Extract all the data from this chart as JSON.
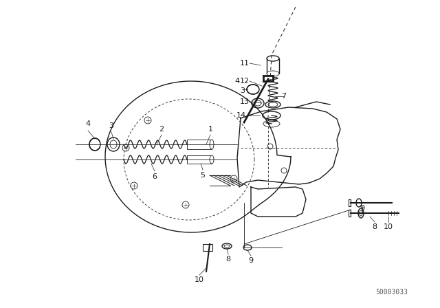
{
  "bg_color": "#ffffff",
  "line_color": "#1a1a1a",
  "fig_width": 6.4,
  "fig_height": 4.48,
  "dpi": 100,
  "watermark": "50003033",
  "watermark_fontsize": 7
}
